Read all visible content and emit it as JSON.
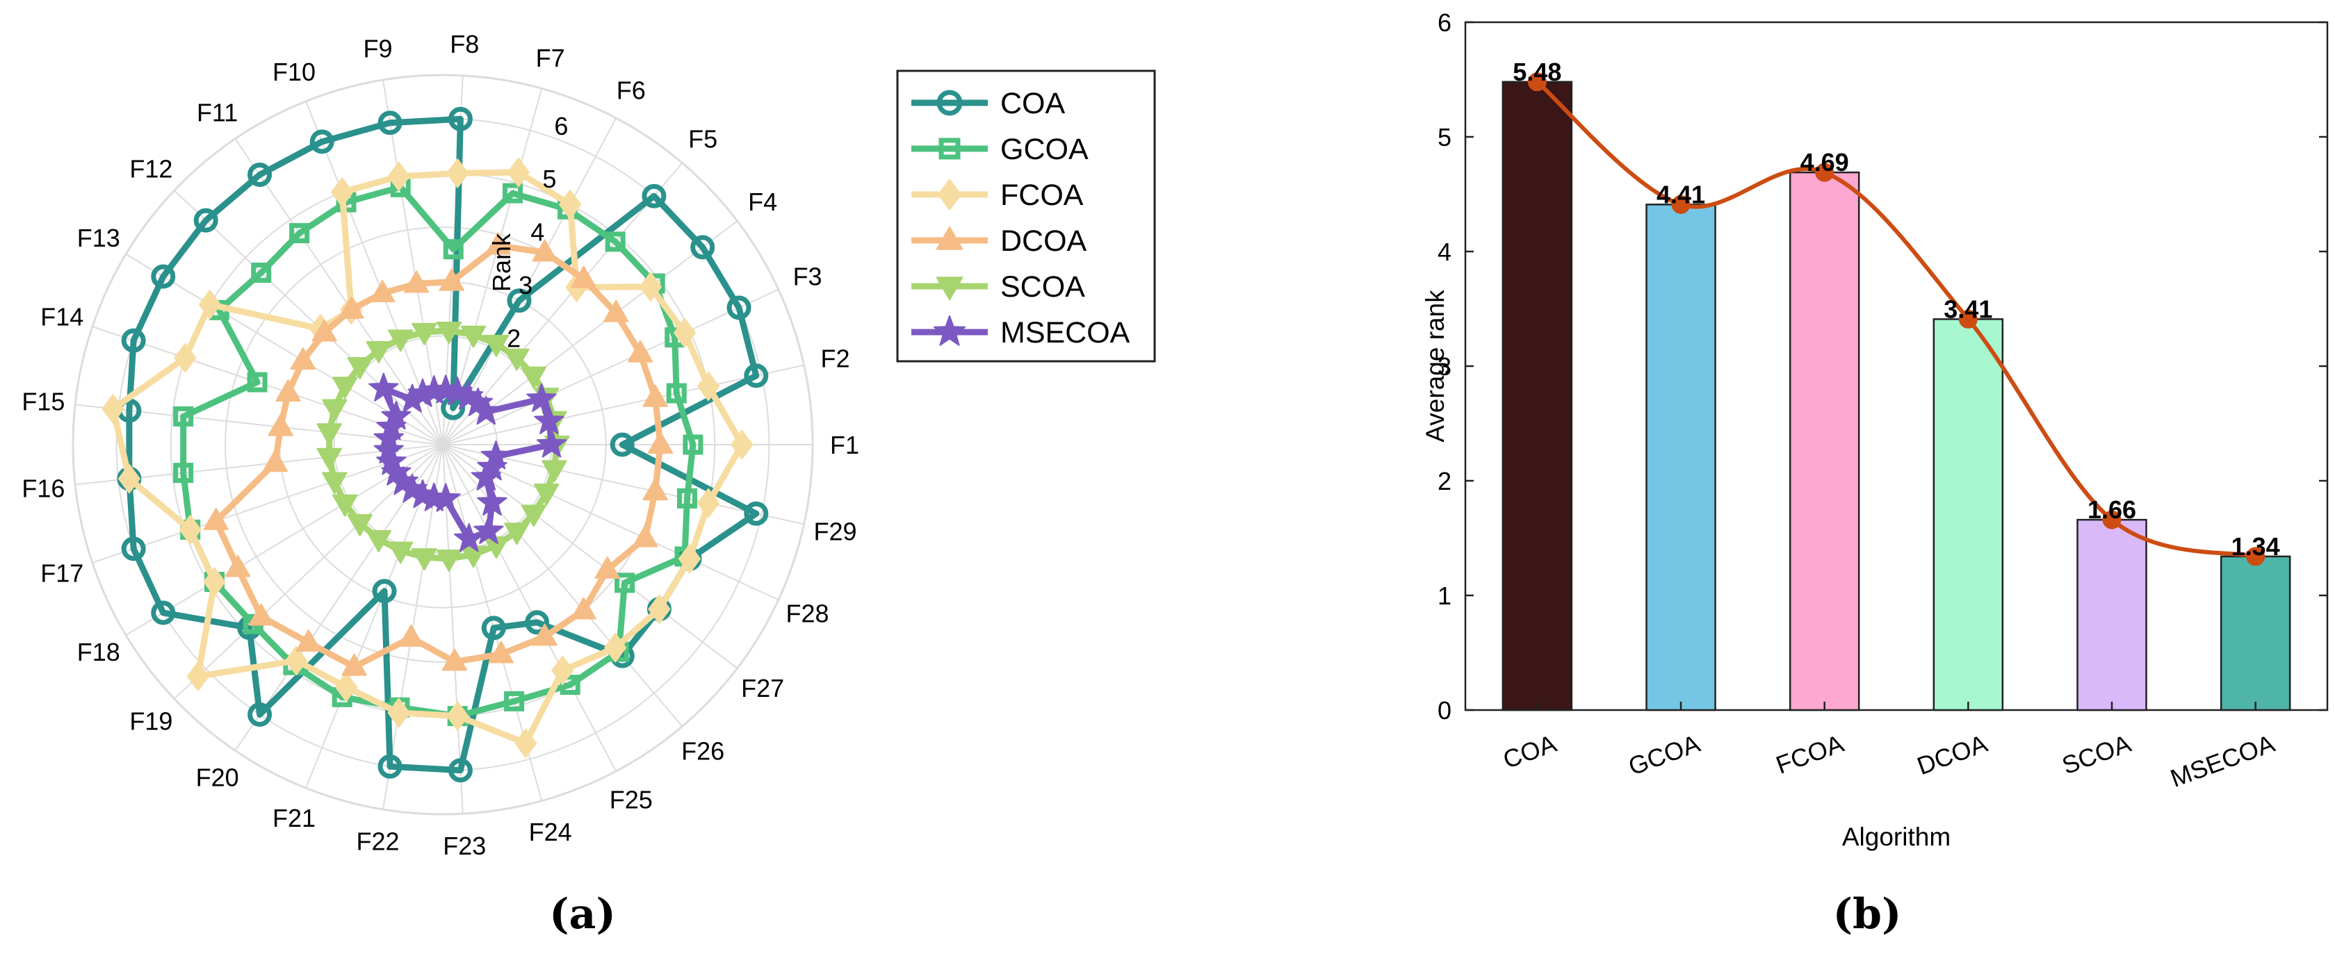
{
  "colors": {
    "COA": "#2A918C",
    "GCOA": "#4CC27E",
    "FCOA": "#F7DCA0",
    "DCOA": "#F6BC85",
    "SCOA": "#A6D46E",
    "MSECOA": "#7C59C2",
    "grid": "#DCDCDC",
    "spline": "#CC4C12",
    "bar_edge": "#222222"
  },
  "chart_data": [
    {
      "type": "radar",
      "panel_label": "(a)",
      "axis_label": "Rank",
      "r_ticks": [
        "2",
        "3",
        "4",
        "5",
        "6"
      ],
      "r_tick_values": [
        2,
        3,
        4,
        5,
        6
      ],
      "r_lim": [
        0,
        6.8
      ],
      "categories": [
        "F1",
        "F2",
        "F3",
        "F4",
        "F5",
        "F6",
        "F7",
        "F8",
        "F9",
        "F10",
        "F11",
        "F12",
        "F13",
        "F14",
        "F15",
        "F16",
        "F17",
        "F18",
        "F19",
        "F20",
        "F21",
        "F22",
        "F23",
        "F24",
        "F25",
        "F26",
        "F27",
        "F28",
        "F29"
      ],
      "series": [
        {
          "name": "COA",
          "marker": "circle",
          "values": [
            3.3,
            5.9,
            6.0,
            6.0,
            6.0,
            3.0,
            0.7,
            6.0,
            6.0,
            6.0,
            6.0,
            6.0,
            6.0,
            6.0,
            5.8,
            5.8,
            6.0,
            6.0,
            4.9,
            6.0,
            2.9,
            6.0,
            6.0,
            3.5,
            3.7,
            5.1,
            5.0,
            5.0,
            5.9
          ]
        },
        {
          "name": "GCOA",
          "marker": "square",
          "values": [
            4.6,
            4.4,
            4.7,
            4.9,
            4.9,
            4.9,
            4.8,
            3.6,
            4.8,
            4.8,
            4.7,
            4.6,
            4.8,
            3.6,
            4.8,
            4.8,
            4.9,
            4.9,
            4.8,
            4.9,
            5.0,
            4.9,
            5.0,
            4.9,
            5.0,
            5.0,
            4.2,
            4.9,
            4.6
          ]
        },
        {
          "name": "FCOA",
          "marker": "diamond",
          "values": [
            5.5,
            5.0,
            4.9,
            4.8,
            3.8,
            5.0,
            5.2,
            5.0,
            5.0,
            5.0,
            3.0,
            3.1,
            5.0,
            5.0,
            6.1,
            5.8,
            4.9,
            4.9,
            6.2,
            4.8,
            4.8,
            5.0,
            5.0,
            5.7,
            4.7,
            4.9,
            5.0,
            5.0,
            5.0
          ]
        },
        {
          "name": "DCOA",
          "marker": "triangle-up",
          "values": [
            4.0,
            4.0,
            4.0,
            4.0,
            4.0,
            4.0,
            3.8,
            3.0,
            3.0,
            3.0,
            3.0,
            3.0,
            3.0,
            3.0,
            3.0,
            3.1,
            4.4,
            4.4,
            4.6,
            4.4,
            4.4,
            3.6,
            4.0,
            4.0,
            4.0,
            4.0,
            3.8,
            4.1,
            4.0
          ]
        },
        {
          "name": "SCOA",
          "marker": "triangle-down",
          "values": [
            2.1,
            2.1,
            2.1,
            2.1,
            2.1,
            2.1,
            2.1,
            2.1,
            2.1,
            2.1,
            2.1,
            2.1,
            2.1,
            2.1,
            2.1,
            2.1,
            2.1,
            2.1,
            2.1,
            2.1,
            2.1,
            2.1,
            2.1,
            2.1,
            2.1,
            2.1,
            2.1,
            2.1,
            2.1
          ]
        },
        {
          "name": "MSECOA",
          "marker": "star",
          "values": [
            2.0,
            2.0,
            2.0,
            1.0,
            1.0,
            1.0,
            1.0,
            1.0,
            1.0,
            1.0,
            1.0,
            1.5,
            1.0,
            1.0,
            1.0,
            1.0,
            1.0,
            1.0,
            1.0,
            1.0,
            1.0,
            1.0,
            1.0,
            1.8,
            1.8,
            1.4,
            1.0,
            1.0,
            1.0
          ]
        }
      ],
      "legend": [
        "COA",
        "GCOA",
        "FCOA",
        "DCOA",
        "SCOA",
        "MSECOA"
      ],
      "legend_placement": "right"
    },
    {
      "type": "bar",
      "panel_label": "(b)",
      "title": "",
      "xlabel": "Algorithm",
      "ylabel": "Average rank",
      "categories": [
        "COA",
        "GCOA",
        "FCOA",
        "DCOA",
        "SCOA",
        "MSECOA"
      ],
      "values": [
        5.48,
        4.41,
        4.69,
        3.41,
        1.66,
        1.34
      ],
      "value_labels": [
        "5.48",
        "4.41",
        "4.69",
        "3.41",
        "1.66",
        "1.34"
      ],
      "bar_colors": [
        "#3A1616",
        "#75C6E4",
        "#FCA8D0",
        "#A6F7D0",
        "#DAB9FA",
        "#4EB5A8"
      ],
      "ylim": [
        0,
        6
      ],
      "yticks": [
        "0",
        "1",
        "2",
        "3",
        "4",
        "5",
        "6"
      ],
      "ytick_values": [
        0,
        1,
        2,
        3,
        4,
        5,
        6
      ],
      "grid": false,
      "overlay": "smooth-line"
    }
  ]
}
